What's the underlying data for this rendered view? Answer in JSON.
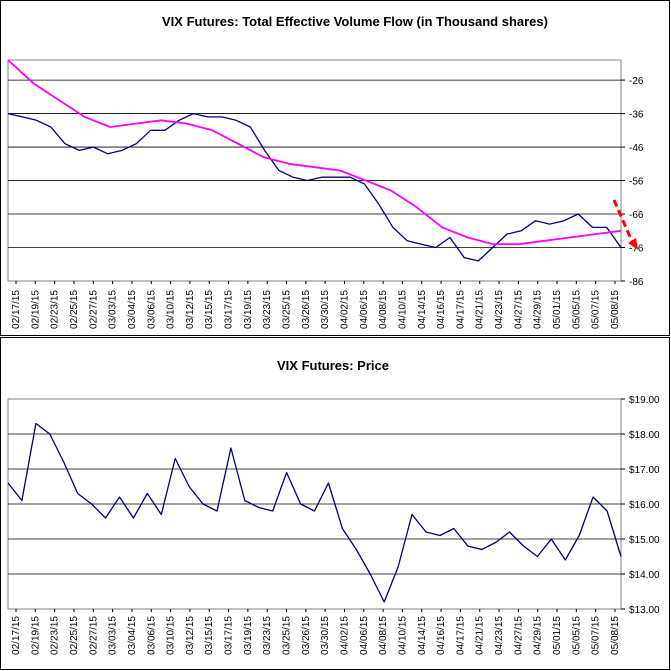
{
  "chart_data": [
    {
      "type": "line",
      "title": "VIX Futures: Total Effective Volume Flow (in Thousand shares)",
      "x_ticks": [
        "02/17/15",
        "02/19/15",
        "02/23/15",
        "02/25/15",
        "02/27/15",
        "03/03/15",
        "03/04/15",
        "03/06/15",
        "03/10/15",
        "03/12/15",
        "03/15/15",
        "03/17/15",
        "03/19/15",
        "03/23/15",
        "03/25/15",
        "03/26/15",
        "03/30/15",
        "04/02/15",
        "04/06/15",
        "04/08/15",
        "04/10/15",
        "04/14/15",
        "04/16/15",
        "04/17/15",
        "04/21/15",
        "04/23/15",
        "04/27/15",
        "04/29/15",
        "05/01/15",
        "05/05/15",
        "05/07/15",
        "05/08/15"
      ],
      "y_ticks": [
        -26,
        -36,
        -46,
        -56,
        -66,
        -76,
        -86
      ],
      "ylim": [
        -86,
        -20
      ],
      "grid": true,
      "series": [
        {
          "color": "#000080",
          "values": [
            -36,
            -37,
            -38,
            -40,
            -45,
            -47,
            -46,
            -48,
            -47,
            -45,
            -41,
            -41,
            -38,
            -36,
            -37,
            -37,
            -38,
            -40,
            -47,
            -53,
            -55,
            -56,
            -55,
            -55,
            -55,
            -57,
            -63,
            -70,
            -74,
            -75,
            -76,
            -73,
            -79,
            -80,
            -76,
            -72,
            -71,
            -68,
            -69,
            -68,
            -66,
            -70,
            -70,
            -76
          ]
        },
        {
          "color": "#ff00ff",
          "values": [
            -20,
            -27,
            -32,
            -37,
            -40,
            -39,
            -38,
            -39,
            -41,
            -45,
            -49,
            -51,
            -52,
            -53,
            -56,
            -59,
            -64,
            -70,
            -73,
            -75,
            -75,
            -74,
            -73,
            -72,
            -71
          ]
        }
      ],
      "annotation": {
        "type": "arrow",
        "color": "#ff0000",
        "style": "dashed"
      }
    },
    {
      "type": "line",
      "title": "VIX Futures: Price",
      "x_ticks": [
        "02/17/15",
        "02/19/15",
        "02/23/15",
        "02/25/15",
        "02/27/15",
        "03/03/15",
        "03/04/15",
        "03/06/15",
        "03/10/15",
        "03/12/15",
        "03/15/15",
        "03/17/15",
        "03/19/15",
        "03/23/15",
        "03/25/15",
        "03/26/15",
        "03/30/15",
        "04/02/15",
        "04/06/15",
        "04/08/15",
        "04/10/15",
        "04/14/15",
        "04/16/15",
        "04/17/15",
        "04/21/15",
        "04/23/15",
        "04/27/15",
        "04/29/15",
        "05/01/15",
        "05/05/15",
        "05/07/15",
        "05/08/15"
      ],
      "y_ticks": [
        "$19.00",
        "$18.00",
        "$17.00",
        "$16.00",
        "$15.00",
        "$14.00",
        "$13.00"
      ],
      "ylim": [
        13,
        19
      ],
      "grid": true,
      "series": [
        {
          "color": "#000080",
          "values": [
            16.6,
            16.1,
            18.3,
            18.0,
            17.2,
            16.3,
            16.0,
            15.6,
            16.2,
            15.6,
            16.3,
            15.7,
            17.3,
            16.5,
            16.0,
            15.8,
            17.6,
            16.1,
            15.9,
            15.8,
            16.9,
            16.0,
            15.8,
            16.6,
            15.3,
            14.7,
            14.0,
            13.2,
            14.2,
            15.7,
            15.2,
            15.1,
            15.3,
            14.8,
            14.7,
            14.9,
            15.2,
            14.8,
            14.5,
            15.0,
            14.4,
            15.1,
            16.2,
            15.8,
            14.5
          ]
        }
      ]
    }
  ]
}
